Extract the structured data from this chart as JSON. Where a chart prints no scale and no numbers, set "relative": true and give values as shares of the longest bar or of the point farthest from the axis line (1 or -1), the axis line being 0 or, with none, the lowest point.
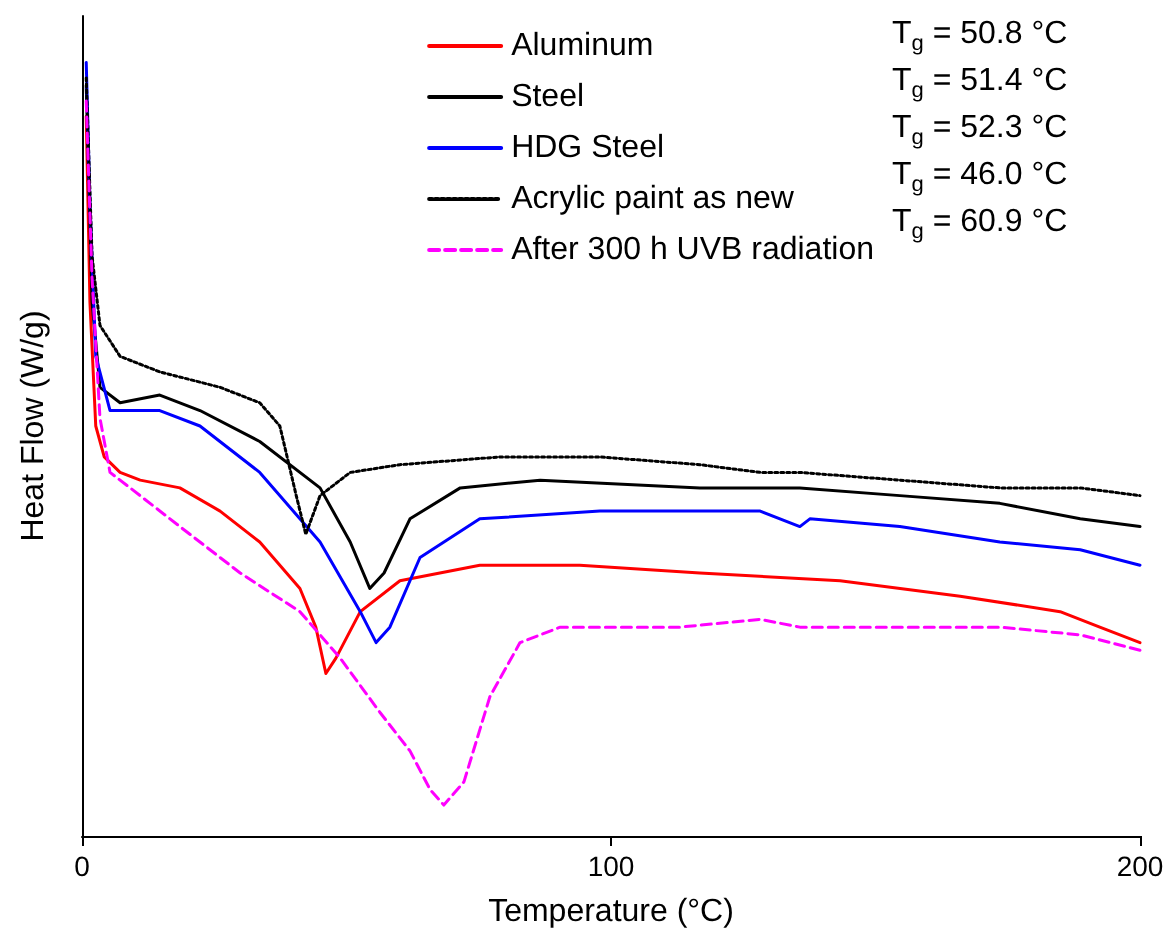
{
  "chart_data": {
    "type": "line",
    "relative": true,
    "xlabel": "Temperature (°C)",
    "ylabel": "Heat Flow (W/g)",
    "xlim": [
      0,
      200
    ],
    "xticks": [
      0,
      100,
      200
    ],
    "grid": false,
    "legend": "top right",
    "marker": "none",
    "series": [
      {
        "name": "Aluminum",
        "color": "#ff0000",
        "line_style": "solid",
        "x": [
          0.8,
          1.5,
          2.6,
          4.2,
          7.2,
          11.0,
          18.5,
          26.1,
          33.6,
          41.2,
          44.2,
          46.1,
          48.0,
          52.6,
          60.1,
          75.2,
          94.1,
          116.8,
          143.3,
          166.0,
          184.9,
          192.4,
          200
        ],
        "values": [
          0.93,
          0.69,
          0.53,
          0.49,
          0.47,
          0.46,
          0.45,
          0.42,
          0.38,
          0.32,
          0.27,
          0.21,
          0.23,
          0.29,
          0.33,
          0.35,
          0.35,
          0.34,
          0.33,
          0.31,
          0.29,
          0.27,
          0.25
        ]
      },
      {
        "name": "Steel",
        "color": "#000000",
        "line_style": "solid",
        "x": [
          0.8,
          1.9,
          3.4,
          7.2,
          14.7,
          22.3,
          33.6,
          45.0,
          50.7,
          54.4,
          57.1,
          62.0,
          71.5,
          86.6,
          116.8,
          135.7,
          154.6,
          173.5,
          188.7,
          200
        ],
        "values": [
          0.97,
          0.69,
          0.58,
          0.56,
          0.57,
          0.55,
          0.51,
          0.45,
          0.38,
          0.32,
          0.34,
          0.41,
          0.45,
          0.46,
          0.45,
          0.45,
          0.44,
          0.43,
          0.41,
          0.4
        ]
      },
      {
        "name": "HDG Steel",
        "color": "#0000ff",
        "line_style": "solid",
        "x": [
          0.8,
          1.5,
          2.6,
          5.3,
          9.1,
          14.7,
          22.3,
          33.6,
          45.0,
          52.6,
          55.6,
          58.2,
          63.9,
          75.2,
          97.9,
          128.2,
          135.7,
          137.6,
          154.6,
          173.5,
          188.7,
          200
        ],
        "values": [
          1.0,
          0.82,
          0.62,
          0.55,
          0.55,
          0.55,
          0.53,
          0.47,
          0.38,
          0.29,
          0.25,
          0.27,
          0.36,
          0.41,
          0.42,
          0.42,
          0.4,
          0.41,
          0.4,
          0.38,
          0.37,
          0.35
        ]
      },
      {
        "name": "Acrylic paint as new",
        "color": "#000000",
        "line_style": "dotted",
        "x": [
          0.8,
          1.9,
          3.4,
          7.2,
          14.7,
          26.1,
          33.6,
          37.4,
          40.5,
          42.3,
          45.0,
          50.7,
          60.1,
          79.0,
          97.9,
          116.8,
          128.2,
          135.7,
          154.6,
          173.5,
          188.7,
          200
        ],
        "values": [
          0.98,
          0.75,
          0.66,
          0.62,
          0.6,
          0.58,
          0.56,
          0.53,
          0.44,
          0.39,
          0.44,
          0.47,
          0.48,
          0.49,
          0.49,
          0.48,
          0.47,
          0.47,
          0.46,
          0.45,
          0.45,
          0.44
        ]
      },
      {
        "name": "After 300 h UVB radiation",
        "color": "#ff00ff",
        "line_style": "dashed",
        "x": [
          0.8,
          1.9,
          3.4,
          5.3,
          9.1,
          18.5,
          29.9,
          41.2,
          48.8,
          56.3,
          62.0,
          65.8,
          68.4,
          72.2,
          77.1,
          82.8,
          90.4,
          113.0,
          128.2,
          135.7,
          154.6,
          173.5,
          188.7,
          200
        ],
        "values": [
          0.95,
          0.72,
          0.54,
          0.47,
          0.45,
          0.4,
          0.34,
          0.29,
          0.23,
          0.16,
          0.11,
          0.06,
          0.04,
          0.07,
          0.18,
          0.25,
          0.27,
          0.27,
          0.28,
          0.27,
          0.27,
          0.27,
          0.26,
          0.24
        ]
      }
    ],
    "annotations": [
      "T$_{g}$ = 50.8 °C",
      "T$_{g}$ = 51.4 °C",
      "T$_{g}$ = 52.3 °C",
      "T$_{g}$ = 46.0 °C",
      "T$_{g}$ = 60.9 °C"
    ]
  }
}
